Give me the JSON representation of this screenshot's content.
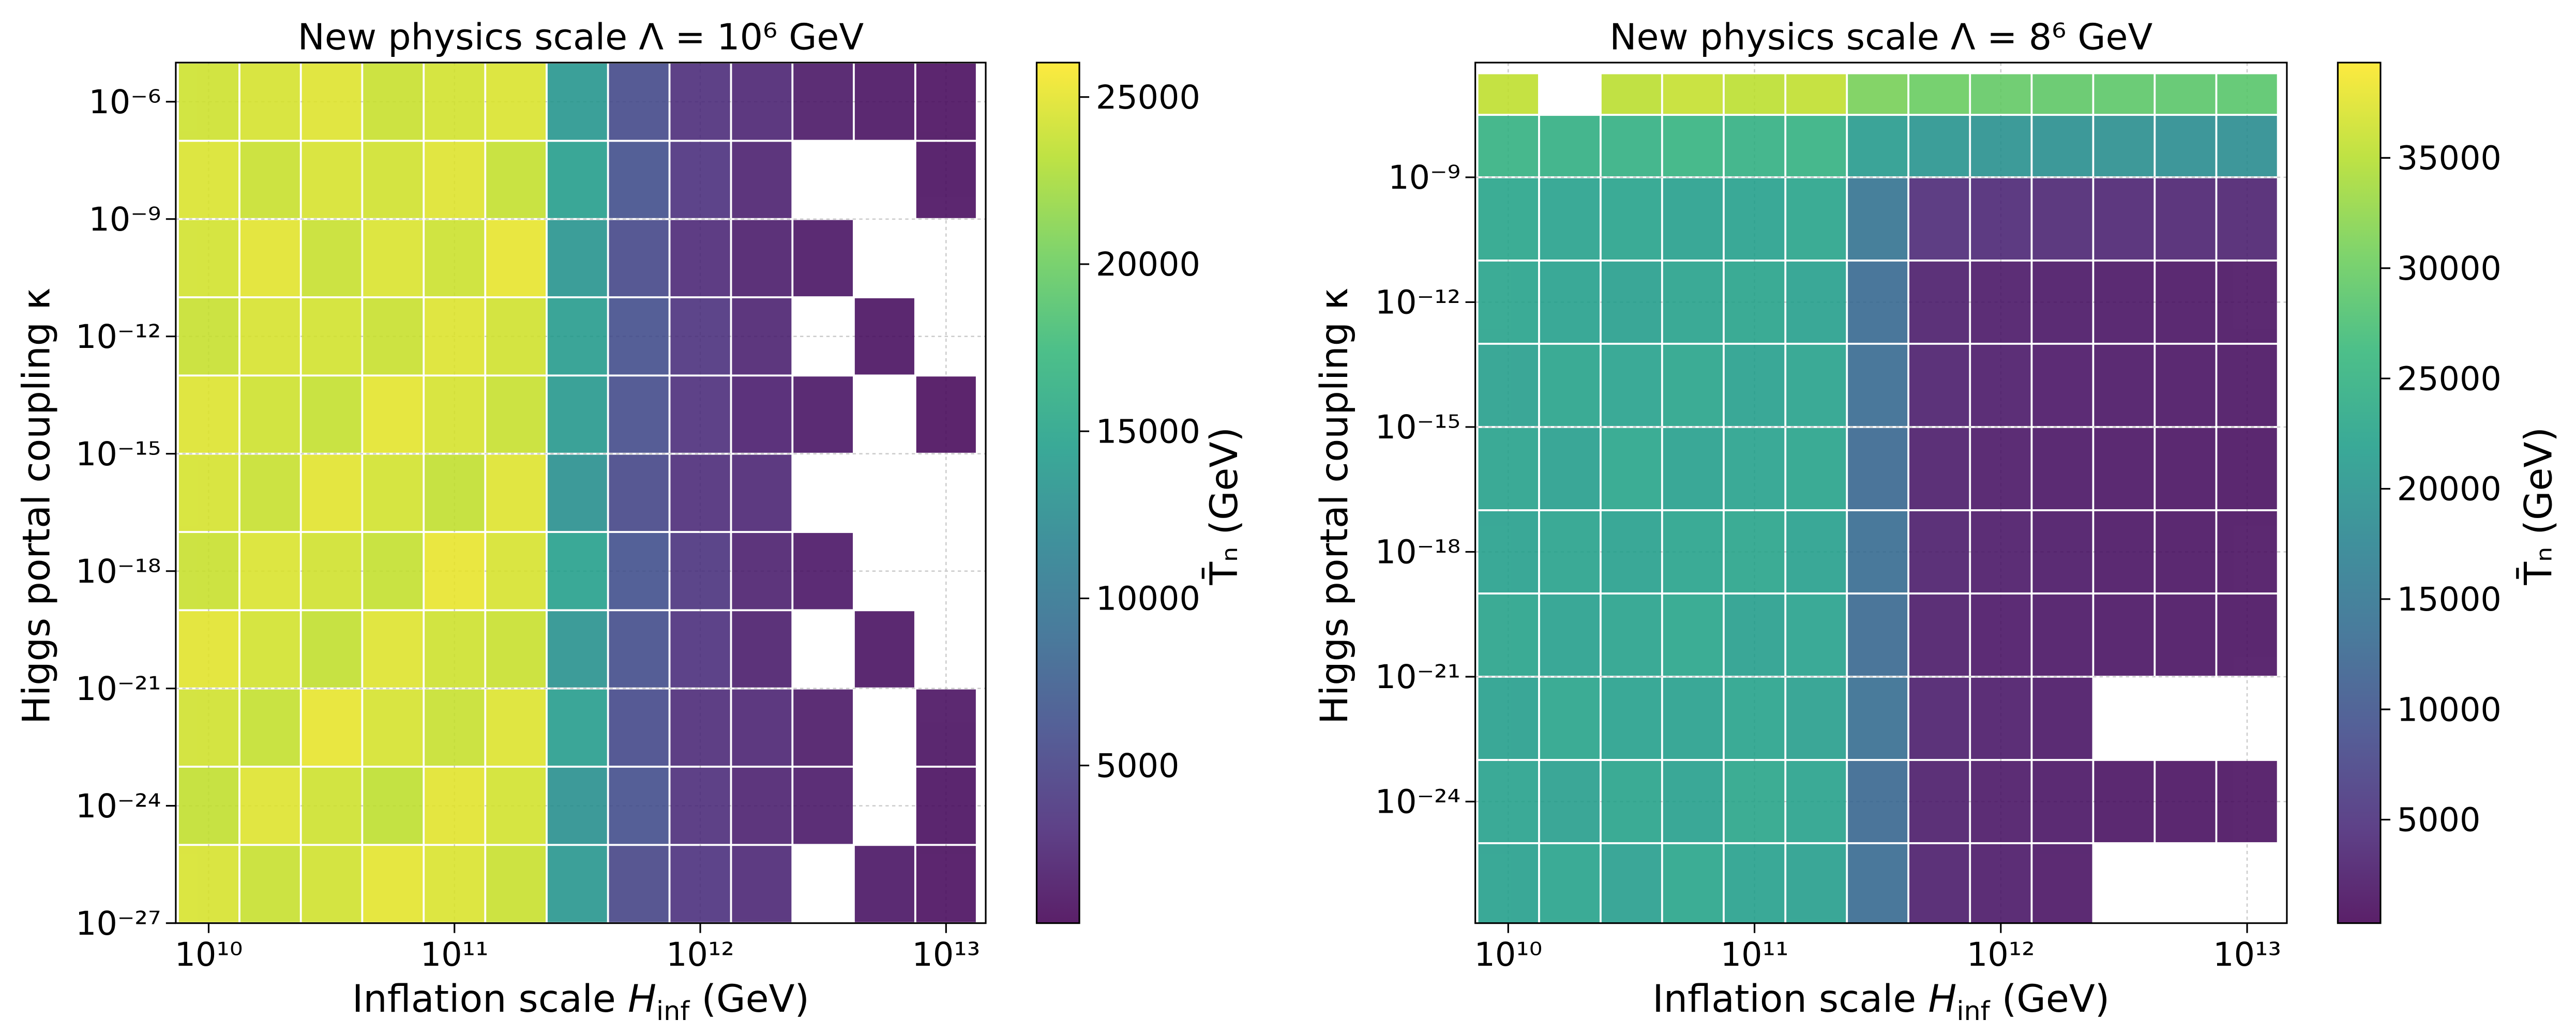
{
  "chart_data": [
    {
      "type": "scatter",
      "title": "New physics scale Λ = 10⁶ GeV",
      "xlabel": [
        "Inflation scale ",
        "H",
        "inf",
        " (GeV)"
      ],
      "ylabel": "Higgs portal coupling κ",
      "xscale": "log",
      "yscale": "log",
      "grid": true,
      "colormap": "viridis",
      "xlim": [
        7350000000.0,
        14500000000000.0
      ],
      "ylim": [
        1e-27,
        1e-05
      ],
      "xticks": [
        {
          "value": 10000000000.0,
          "label": "10¹⁰"
        },
        {
          "value": 100000000000.0,
          "label": "10¹¹"
        },
        {
          "value": 1000000000000.0,
          "label": "10¹²"
        },
        {
          "value": 10000000000000.0,
          "label": "10¹³"
        }
      ],
      "yticks": [
        {
          "value": 1e-27,
          "label": "10⁻²⁷"
        },
        {
          "value": 1e-24,
          "label": "10⁻²⁴"
        },
        {
          "value": 1e-21,
          "label": "10⁻²¹"
        },
        {
          "value": 1e-18,
          "label": "10⁻¹⁸"
        },
        {
          "value": 1e-15,
          "label": "10⁻¹⁵"
        },
        {
          "value": 1e-12,
          "label": "10⁻¹²"
        },
        {
          "value": 1e-09,
          "label": "10⁻⁹"
        },
        {
          "value": 1e-06,
          "label": "10⁻⁶"
        }
      ],
      "clabel": "T̄ₙ (GeV)",
      "clim": [
        283,
        26030
      ],
      "cticks": [
        5000,
        10000,
        15000,
        20000,
        25000
      ],
      "x": [
        10000000000.0,
        17800000000.0,
        31600000000.0,
        56200000000.0,
        100000000000.0,
        178000000000.0,
        316000000000.0,
        562000000000.0,
        1000000000000.0,
        1780000000000.0,
        3160000000000.0,
        5620000000000.0,
        10000000000000.0
      ],
      "y": [
        1e-26,
        1e-24,
        1e-22,
        1e-20,
        1e-18,
        1e-16,
        1e-14,
        1e-12,
        1e-10,
        1e-08,
        1e-06
      ],
      "values": [
        [
          24500,
          23800,
          24200,
          25000,
          24600,
          23900,
          13500,
          5200,
          3400,
          2600,
          null,
          1200,
          800
        ],
        [
          23600,
          24800,
          24100,
          23500,
          24900,
          24300,
          12800,
          6100,
          3100,
          2200,
          1600,
          null,
          900
        ],
        [
          24200,
          23700,
          25100,
          24400,
          23800,
          24700,
          14200,
          5600,
          2900,
          2400,
          1500,
          null,
          1000
        ],
        [
          24900,
          24300,
          23600,
          24800,
          24100,
          23900,
          13100,
          5900,
          3300,
          1900,
          null,
          1100,
          null
        ],
        [
          23900,
          24600,
          24200,
          23700,
          25200,
          24500,
          14600,
          6300,
          3600,
          2100,
          1400,
          null,
          null
        ],
        [
          24400,
          23800,
          24900,
          24300,
          23600,
          24800,
          12900,
          5400,
          3000,
          2500,
          null,
          null,
          null
        ],
        [
          24700,
          24100,
          23700,
          25000,
          24400,
          23800,
          13800,
          5800,
          3200,
          2000,
          1300,
          null,
          700
        ],
        [
          23800,
          24500,
          24300,
          23900,
          24700,
          24200,
          14100,
          6000,
          3500,
          2300,
          null,
          1000,
          null
        ],
        [
          24300,
          24900,
          23800,
          24600,
          24000,
          25100,
          13300,
          5500,
          2800,
          1800,
          1200,
          null,
          null
        ],
        [
          24600,
          23900,
          24500,
          24200,
          24800,
          23700,
          14400,
          6200,
          3400,
          2200,
          null,
          null,
          900
        ],
        [
          24100,
          24400,
          24800,
          23900,
          24300,
          24600,
          13600,
          5700,
          3100,
          2400,
          1500,
          1100,
          800
        ]
      ]
    },
    {
      "type": "scatter",
      "title": "New physics scale Λ = 8⁶ GeV",
      "xlabel": [
        "Inflation scale ",
        "H",
        "inf",
        " (GeV)"
      ],
      "ylabel": "Higgs portal coupling κ",
      "xscale": "log",
      "yscale": "log",
      "grid": true,
      "colormap": "viridis",
      "xlim": [
        7350000000.0,
        14500000000000.0
      ],
      "ylim": [
        1.2e-27,
        5.7e-07
      ],
      "xticks": [
        {
          "value": 10000000000.0,
          "label": "10¹⁰"
        },
        {
          "value": 100000000000.0,
          "label": "10¹¹"
        },
        {
          "value": 1000000000000.0,
          "label": "10¹²"
        },
        {
          "value": 10000000000000.0,
          "label": "10¹³"
        }
      ],
      "yticks": [
        {
          "value": 1e-24,
          "label": "10⁻²⁴"
        },
        {
          "value": 1e-21,
          "label": "10⁻²¹"
        },
        {
          "value": 1e-18,
          "label": "10⁻¹⁸"
        },
        {
          "value": 1e-15,
          "label": "10⁻¹⁵"
        },
        {
          "value": 1e-12,
          "label": "10⁻¹²"
        },
        {
          "value": 1e-09,
          "label": "10⁻⁹"
        }
      ],
      "clabel": "T̄ₙ (GeV)",
      "clim": [
        309,
        39320
      ],
      "cticks": [
        5000,
        10000,
        15000,
        20000,
        25000,
        30000,
        35000
      ],
      "x": [
        10000000000.0,
        17800000000.0,
        31600000000.0,
        56200000000.0,
        100000000000.0,
        178000000000.0,
        316000000000.0,
        562000000000.0,
        1000000000000.0,
        1780000000000.0,
        3160000000000.0,
        5620000000000.0,
        10000000000000.0
      ],
      "y": [
        1e-26,
        1e-24,
        1e-22,
        1e-20,
        1e-18,
        1e-16,
        1e-14,
        1e-12,
        1e-10,
        1e-08,
        1e-07
      ],
      "values": [
        [
          21800,
          22300,
          21500,
          22600,
          22000,
          21700,
          13000,
          2600,
          2200,
          1800,
          null,
          null,
          null
        ],
        [
          22100,
          21600,
          22400,
          21900,
          22700,
          22200,
          12500,
          2500,
          2100,
          1700,
          1500,
          1400,
          1300
        ],
        [
          21700,
          22500,
          22000,
          21800,
          22300,
          21600,
          13400,
          2700,
          2300,
          1900,
          null,
          null,
          null
        ],
        [
          22400,
          21900,
          22200,
          22600,
          21700,
          22100,
          12800,
          2400,
          2000,
          1800,
          1600,
          1500,
          1400
        ],
        [
          21900,
          22200,
          21800,
          22300,
          22500,
          21900,
          13200,
          2600,
          2200,
          1900,
          1600,
          1500,
          1400
        ],
        [
          22200,
          21700,
          22600,
          21900,
          22100,
          22400,
          12600,
          2500,
          2100,
          1800,
          1600,
          1500,
          1400
        ],
        [
          21600,
          22400,
          22100,
          22500,
          21800,
          22200,
          13100,
          2700,
          2300,
          2000,
          1700,
          1600,
          1500
        ],
        [
          22300,
          22000,
          21700,
          22200,
          22400,
          21800,
          12900,
          2600,
          2200,
          1900,
          1700,
          1600,
          1500
        ],
        [
          22600,
          22100,
          22300,
          21800,
          22000,
          22500,
          14500,
          4200,
          3800,
          3600,
          3400,
          3300,
          3200
        ],
        [
          25000,
          24600,
          24800,
          25200,
          24700,
          24900,
          21000,
          20000,
          19500,
          19200,
          19000,
          18800,
          18700
        ],
        [
          35500,
          null,
          35200,
          35800,
          35300,
          35600,
          31000,
          30000,
          29500,
          29200,
          29000,
          28800,
          28700
        ]
      ]
    }
  ]
}
